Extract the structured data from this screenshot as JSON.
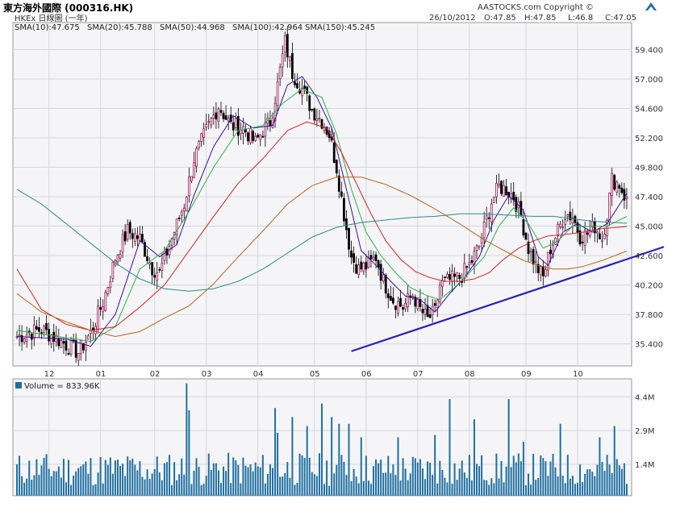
{
  "header": {
    "title": "東方海外國際 (000316.HK)",
    "exchange": "HKEx 日線圖 (一年)",
    "copyright": "AASTOCKS.com Copyright ©",
    "date": "26/10/2012",
    "open": "O:47.85",
    "high": "H:47.85",
    "low": "L:46.8",
    "close": "C:47.05"
  },
  "chart_data": [
    {
      "type": "candlestick",
      "x_tick_labels": [
        "12",
        "01",
        "02",
        "03",
        "04",
        "05",
        "06",
        "07",
        "08",
        "09",
        "10"
      ],
      "y_tick_labels": [
        "59.400",
        "57.000",
        "54.600",
        "52.200",
        "49.800",
        "47.400",
        "45.000",
        "42.600",
        "40.200",
        "37.800",
        "35.400"
      ],
      "ylim": [
        33.6,
        61.6
      ],
      "grid": true,
      "legend": [
        {
          "label": "SMA(10):47.675",
          "color": "#3a0ca3"
        },
        {
          "label": "SMA(20):45.788",
          "color": "#2bb24c"
        },
        {
          "label": "SMA(50):44.968",
          "color": "#d62020"
        },
        {
          "label": "SMA(100):42.964",
          "color": "#b5651d"
        },
        {
          "label": "SMA(150):45.245",
          "color": "#2a8a8a"
        }
      ],
      "anchors": [
        [
          0,
          36.0
        ],
        [
          10,
          36.6
        ],
        [
          18,
          35.6
        ],
        [
          25,
          34.7
        ],
        [
          30,
          36.3
        ],
        [
          35,
          38.8
        ],
        [
          40,
          42.4
        ],
        [
          45,
          44.6
        ],
        [
          50,
          44.0
        ],
        [
          55,
          41.6
        ],
        [
          58,
          41.2
        ],
        [
          63,
          44.0
        ],
        [
          68,
          46.8
        ],
        [
          72,
          50.5
        ],
        [
          77,
          52.8
        ],
        [
          82,
          54.8
        ],
        [
          87,
          53.2
        ],
        [
          92,
          53.0
        ],
        [
          97,
          51.8
        ],
        [
          100,
          52.8
        ],
        [
          103,
          53.5
        ],
        [
          106,
          56.5
        ],
        [
          109,
          60.0
        ],
        [
          112,
          57.5
        ],
        [
          116,
          56.2
        ],
        [
          120,
          54.5
        ],
        [
          124,
          53.6
        ],
        [
          127,
          52.5
        ],
        [
          130,
          49.8
        ],
        [
          133,
          46.0
        ],
        [
          136,
          42.5
        ],
        [
          139,
          41.5
        ],
        [
          143,
          41.8
        ],
        [
          146,
          42.5
        ],
        [
          149,
          40.5
        ],
        [
          153,
          39.0
        ],
        [
          157,
          38.4
        ],
        [
          161,
          39.4
        ],
        [
          164,
          38.2
        ],
        [
          167,
          37.4
        ],
        [
          170,
          38.0
        ],
        [
          172,
          40.2
        ],
        [
          176,
          40.6
        ],
        [
          180,
          40.8
        ],
        [
          184,
          41.8
        ],
        [
          188,
          43.4
        ],
        [
          190,
          44.8
        ],
        [
          193,
          47.0
        ],
        [
          196,
          48.2
        ],
        [
          199,
          48.0
        ],
        [
          202,
          47.4
        ],
        [
          205,
          45.8
        ],
        [
          208,
          43.2
        ],
        [
          211,
          41.8
        ],
        [
          214,
          40.8
        ],
        [
          217,
          43.2
        ],
        [
          220,
          44.6
        ],
        [
          223,
          46.0
        ],
        [
          226,
          45.8
        ],
        [
          229,
          44.2
        ],
        [
          232,
          44.4
        ],
        [
          235,
          45.0
        ],
        [
          238,
          44.0
        ],
        [
          240,
          46.0
        ],
        [
          242,
          48.8
        ],
        [
          245,
          48.4
        ],
        [
          248,
          47.05
        ]
      ],
      "sma": {
        "SMA(10)": [
          [
            0,
            36.0
          ],
          [
            20,
            35.8
          ],
          [
            30,
            35.2
          ],
          [
            40,
            37.8
          ],
          [
            50,
            43.8
          ],
          [
            58,
            42.5
          ],
          [
            65,
            43.5
          ],
          [
            72,
            47.5
          ],
          [
            80,
            51.5
          ],
          [
            88,
            54.0
          ],
          [
            96,
            53.0
          ],
          [
            104,
            53.2
          ],
          [
            110,
            56.5
          ],
          [
            116,
            57.2
          ],
          [
            122,
            55.5
          ],
          [
            128,
            53.0
          ],
          [
            134,
            48.0
          ],
          [
            140,
            43.0
          ],
          [
            146,
            41.8
          ],
          [
            152,
            40.5
          ],
          [
            158,
            39.3
          ],
          [
            164,
            39.0
          ],
          [
            170,
            38.0
          ],
          [
            176,
            39.5
          ],
          [
            182,
            40.8
          ],
          [
            188,
            42.5
          ],
          [
            194,
            45.5
          ],
          [
            200,
            47.5
          ],
          [
            206,
            46.3
          ],
          [
            212,
            42.5
          ],
          [
            216,
            41.8
          ],
          [
            222,
            44.5
          ],
          [
            228,
            45.2
          ],
          [
            234,
            44.5
          ],
          [
            240,
            45.2
          ],
          [
            248,
            47.675
          ]
        ],
        "SMA(20)": [
          [
            0,
            36.5
          ],
          [
            20,
            35.9
          ],
          [
            30,
            35.6
          ],
          [
            40,
            36.8
          ],
          [
            50,
            41.5
          ],
          [
            60,
            43.0
          ],
          [
            70,
            46.2
          ],
          [
            80,
            49.8
          ],
          [
            90,
            52.8
          ],
          [
            100,
            53.2
          ],
          [
            108,
            55.0
          ],
          [
            116,
            56.2
          ],
          [
            124,
            55.5
          ],
          [
            130,
            52.5
          ],
          [
            136,
            48.0
          ],
          [
            142,
            44.5
          ],
          [
            148,
            42.6
          ],
          [
            154,
            41.2
          ],
          [
            160,
            40.0
          ],
          [
            166,
            39.4
          ],
          [
            172,
            39.0
          ],
          [
            178,
            40.0
          ],
          [
            184,
            41.2
          ],
          [
            190,
            42.5
          ],
          [
            196,
            45.0
          ],
          [
            202,
            46.5
          ],
          [
            208,
            45.2
          ],
          [
            214,
            43.2
          ],
          [
            220,
            43.8
          ],
          [
            226,
            45.0
          ],
          [
            232,
            45.0
          ],
          [
            240,
            45.0
          ],
          [
            248,
            45.788
          ]
        ],
        "SMA(50)": [
          [
            0,
            41.5
          ],
          [
            10,
            38.2
          ],
          [
            20,
            37.0
          ],
          [
            30,
            36.5
          ],
          [
            40,
            36.8
          ],
          [
            50,
            38.4
          ],
          [
            60,
            40.2
          ],
          [
            70,
            43.0
          ],
          [
            80,
            45.8
          ],
          [
            90,
            48.5
          ],
          [
            100,
            50.5
          ],
          [
            110,
            52.8
          ],
          [
            118,
            53.5
          ],
          [
            126,
            53.0
          ],
          [
            132,
            51.0
          ],
          [
            138,
            48.5
          ],
          [
            144,
            46.0
          ],
          [
            150,
            43.8
          ],
          [
            156,
            42.3
          ],
          [
            162,
            41.3
          ],
          [
            168,
            40.8
          ],
          [
            174,
            40.5
          ],
          [
            180,
            40.5
          ],
          [
            186,
            40.7
          ],
          [
            192,
            41.2
          ],
          [
            198,
            42.3
          ],
          [
            204,
            43.2
          ],
          [
            210,
            43.8
          ],
          [
            216,
            44.2
          ],
          [
            222,
            44.3
          ],
          [
            230,
            44.5
          ],
          [
            238,
            44.8
          ],
          [
            248,
            44.968
          ]
        ],
        "SMA(100)": [
          [
            0,
            39.5
          ],
          [
            10,
            38.0
          ],
          [
            20,
            37.2
          ],
          [
            30,
            36.5
          ],
          [
            40,
            36.0
          ],
          [
            50,
            36.4
          ],
          [
            60,
            37.5
          ],
          [
            70,
            38.5
          ],
          [
            80,
            40.3
          ],
          [
            90,
            42.5
          ],
          [
            100,
            44.6
          ],
          [
            110,
            46.8
          ],
          [
            120,
            48.3
          ],
          [
            130,
            49.0
          ],
          [
            140,
            49.0
          ],
          [
            150,
            48.4
          ],
          [
            160,
            47.5
          ],
          [
            170,
            46.4
          ],
          [
            180,
            45.2
          ],
          [
            190,
            43.9
          ],
          [
            200,
            42.8
          ],
          [
            206,
            42.2
          ],
          [
            212,
            41.8
          ],
          [
            218,
            41.5
          ],
          [
            224,
            41.5
          ],
          [
            230,
            41.7
          ],
          [
            238,
            42.2
          ],
          [
            248,
            42.964
          ]
        ],
        "SMA(150)": [
          [
            0,
            48.0
          ],
          [
            10,
            46.8
          ],
          [
            20,
            45.2
          ],
          [
            30,
            43.6
          ],
          [
            40,
            42.0
          ],
          [
            50,
            40.7
          ],
          [
            60,
            39.9
          ],
          [
            70,
            39.7
          ],
          [
            80,
            39.9
          ],
          [
            90,
            40.5
          ],
          [
            100,
            41.5
          ],
          [
            110,
            42.8
          ],
          [
            120,
            44.1
          ],
          [
            130,
            44.9
          ],
          [
            140,
            45.3
          ],
          [
            150,
            45.5
          ],
          [
            160,
            45.7
          ],
          [
            170,
            45.8
          ],
          [
            180,
            46.0
          ],
          [
            190,
            46.0
          ],
          [
            200,
            45.9
          ],
          [
            210,
            45.8
          ],
          [
            218,
            45.8
          ],
          [
            226,
            45.6
          ],
          [
            234,
            45.4
          ],
          [
            242,
            45.3
          ],
          [
            248,
            45.245
          ]
        ]
      },
      "trendline": [
        [
          136,
          34.8
        ],
        [
          248,
          42.3
        ]
      ]
    },
    {
      "type": "bar",
      "legend": [
        {
          "label": "Volume = 833.96K",
          "color": "#1f6fa0"
        }
      ],
      "y_tick_labels": [
        "4.4M",
        "2.9M",
        "1.4M"
      ],
      "ylim": [
        0,
        5.2
      ],
      "spikes": [
        [
          69,
          5.0
        ],
        [
          70,
          3.8
        ],
        [
          105,
          3.9
        ],
        [
          106,
          2.8
        ],
        [
          112,
          3.5
        ],
        [
          118,
          3.1
        ],
        [
          124,
          4.1
        ],
        [
          128,
          3.5
        ],
        [
          131,
          3.2
        ],
        [
          135,
          3.2
        ],
        [
          140,
          2.6
        ],
        [
          155,
          2.6
        ],
        [
          170,
          2.7
        ],
        [
          176,
          4.3
        ],
        [
          186,
          3.4
        ],
        [
          200,
          4.3
        ],
        [
          206,
          2.4
        ],
        [
          221,
          3.2
        ],
        [
          237,
          2.6
        ],
        [
          243,
          3.1
        ]
      ],
      "base_volume": 1.2
    }
  ]
}
